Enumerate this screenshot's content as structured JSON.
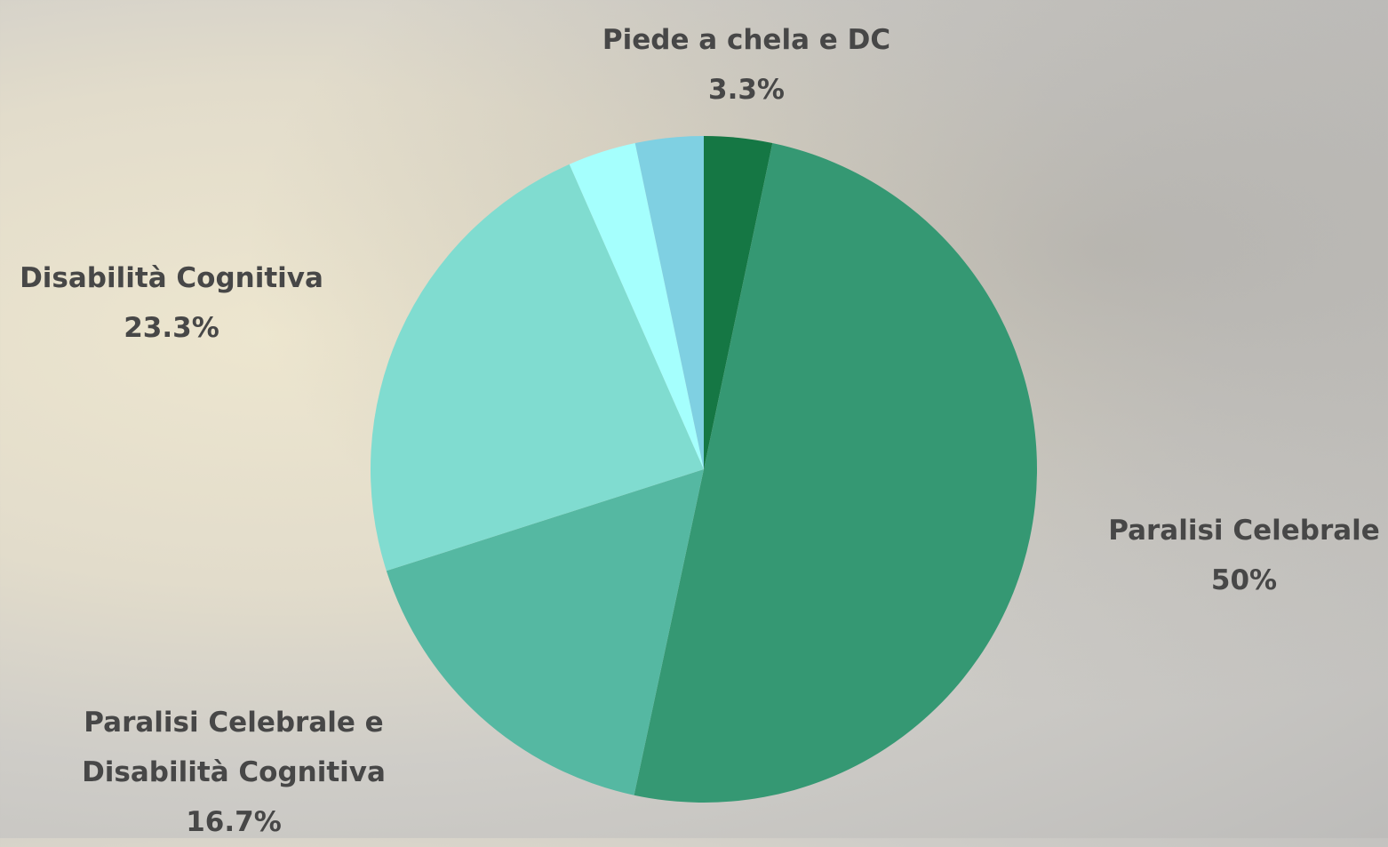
{
  "chart_data": {
    "type": "pie",
    "categories": [
      "Piede a chela e DC",
      "Paralisi Celebrale",
      "Paralisi Celebrale e Disabilità Cognitiva",
      "Disabilità Cognitiva",
      null,
      null
    ],
    "values": [
      3.3,
      50,
      16.7,
      23.3,
      3.3,
      3.3
    ],
    "value_labels": [
      "3.3%",
      "50%",
      "16.7%",
      "23.3%",
      null,
      null
    ],
    "colors": [
      "#157744",
      "#359873",
      "#55b8a2",
      "#80dcd0",
      "#a5fffd",
      "#7fd0e2"
    ]
  }
}
